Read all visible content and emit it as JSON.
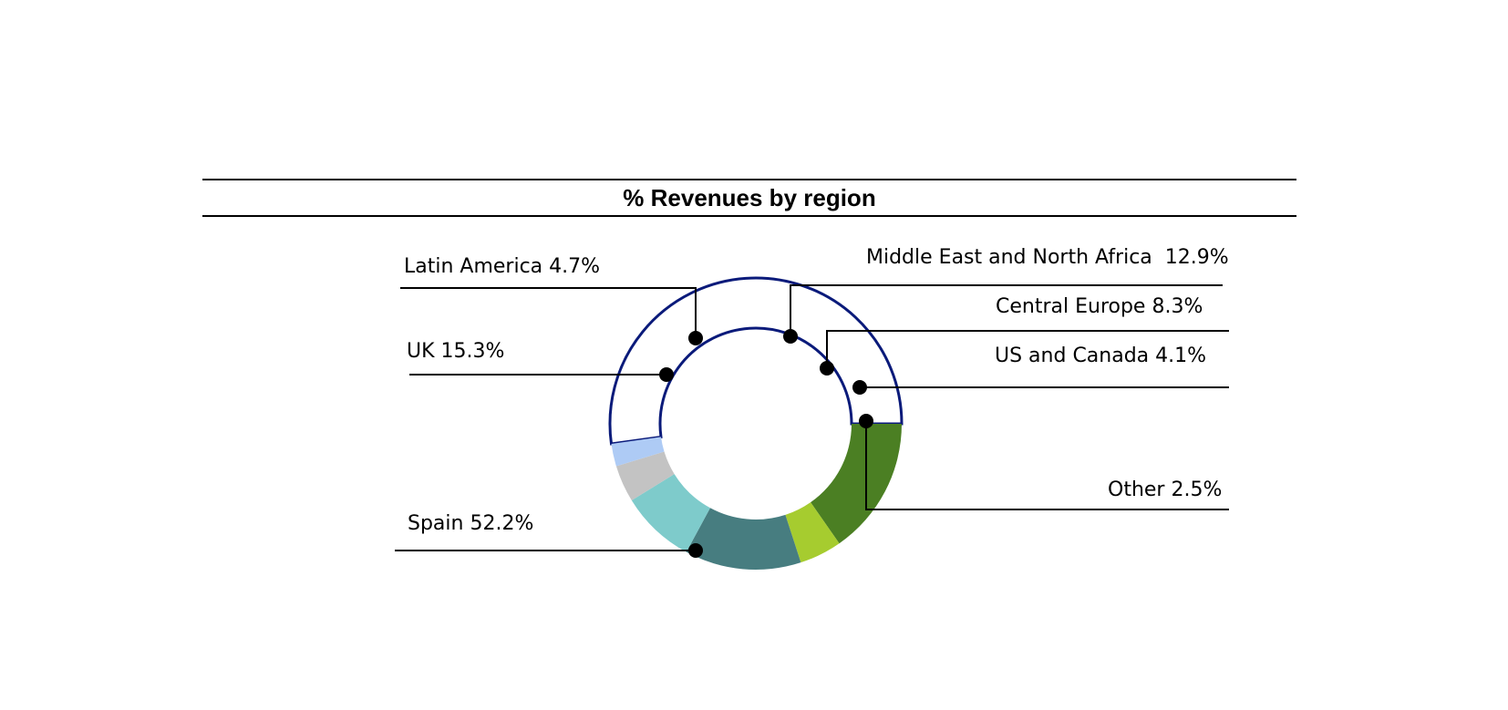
{
  "chart_data": {
    "type": "pie",
    "variant": "donut",
    "title": "% Revenues by region",
    "slices": [
      {
        "name": "Spain",
        "value": 52.2,
        "label": "Spain 52.2%",
        "color": "#ffffff",
        "outline": "#0a1a7a"
      },
      {
        "name": "UK",
        "value": 15.3,
        "label": "UK 15.3%",
        "color": "#4b7f23"
      },
      {
        "name": "Latin America",
        "value": 4.7,
        "label": "Latin America 4.7%",
        "color": "#a6cc2f"
      },
      {
        "name": "Middle East and North Africa",
        "value": 12.9,
        "label": "Middle East and North Africa  12.9%",
        "color": "#477d80"
      },
      {
        "name": "Central Europe",
        "value": 8.3,
        "label": "Central Europe 8.3%",
        "color": "#7ecbcb"
      },
      {
        "name": "US and Canada",
        "value": 4.1,
        "label": "US and Canada 4.1%",
        "color": "#c3c3c3"
      },
      {
        "name": "Other",
        "value": 2.5,
        "label": "Other 2.5%",
        "color": "#aecbf5"
      }
    ],
    "legend": "none"
  }
}
